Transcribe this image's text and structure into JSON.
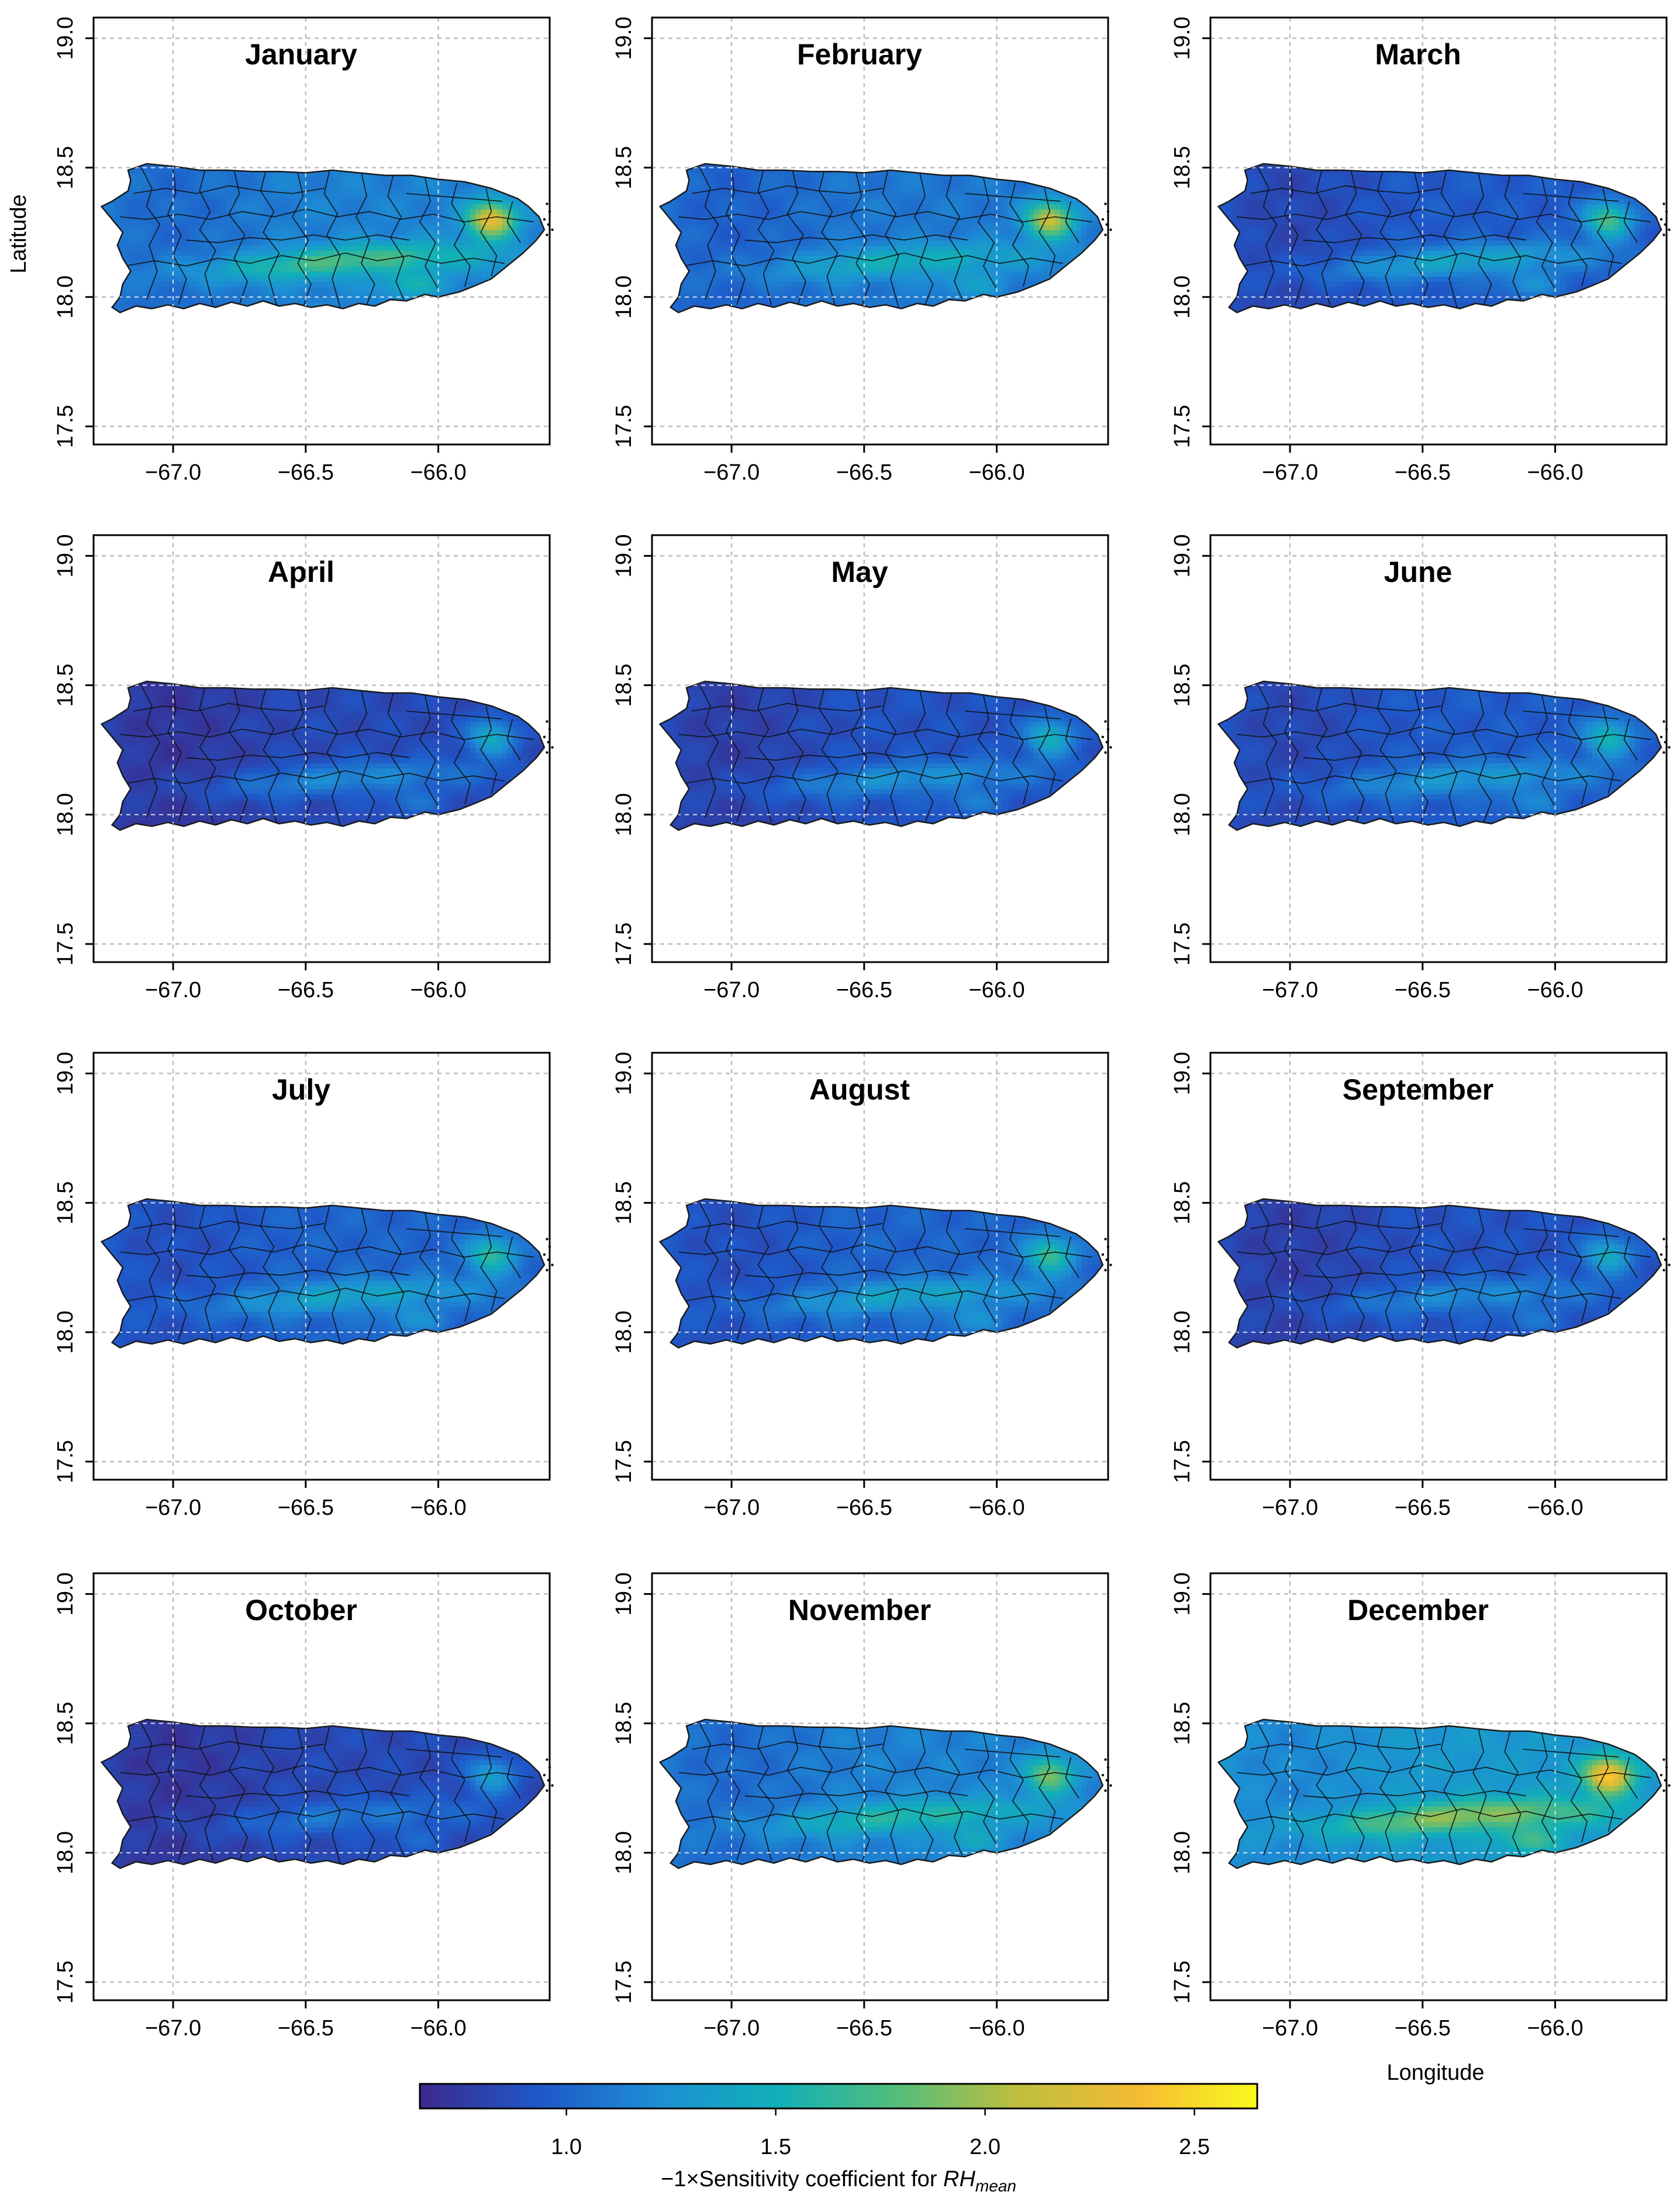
{
  "figure": {
    "panels": [
      {
        "month": "January"
      },
      {
        "month": "February"
      },
      {
        "month": "March"
      },
      {
        "month": "April"
      },
      {
        "month": "May"
      },
      {
        "month": "June"
      },
      {
        "month": "July"
      },
      {
        "month": "August"
      },
      {
        "month": "September"
      },
      {
        "month": "October"
      },
      {
        "month": "November"
      },
      {
        "month": "December"
      }
    ],
    "y_axis_title": "Latitude",
    "x_axis_title": "Longitude",
    "colorbar_title_prefix": "−1×Sensitivity coefficient for ",
    "colorbar_title_var": "RH",
    "colorbar_title_sub": "mean"
  },
  "chart_data": {
    "type": "map",
    "region": "Puerto Rico",
    "x_range": [
      -67.3,
      -65.58
    ],
    "y_range": [
      17.43,
      19.08
    ],
    "x_ticks": [
      -67.0,
      -66.5,
      -66.0
    ],
    "x_tick_labels": [
      "−67.0",
      "−66.5",
      "−66.0"
    ],
    "y_ticks": [
      17.5,
      18.0,
      18.5,
      19.0
    ],
    "y_tick_labels": [
      "17.5",
      "18.0",
      "18.5",
      "19.0"
    ],
    "xlabel": "Longitude",
    "ylabel": "Latitude",
    "grid": true,
    "colorbar": {
      "range": [
        0.65,
        2.65
      ],
      "ticks": [
        1.0,
        1.5,
        2.0,
        2.5
      ],
      "tick_labels": [
        "1.0",
        "1.5",
        "2.0",
        "2.5"
      ],
      "colors": [
        "#3b2a8c",
        "#1f58c9",
        "#1d8fd4",
        "#11b0b8",
        "#55bd7a",
        "#bfbe3e",
        "#f4ba34",
        "#f9f91d"
      ],
      "title": "−1×Sensitivity coefficient for RH_mean"
    },
    "months": [
      {
        "name": "January",
        "base": 1.15,
        "hotspot": {
          "lon": -65.8,
          "lat": 18.3,
          "value": 2.3
        },
        "central_band": 1.75
      },
      {
        "name": "February",
        "base": 1.1,
        "hotspot": {
          "lon": -65.8,
          "lat": 18.3,
          "value": 2.15
        },
        "central_band": 1.5
      },
      {
        "name": "March",
        "base": 0.95,
        "hotspot": {
          "lon": -65.8,
          "lat": 18.3,
          "value": 1.75
        },
        "central_band": 1.4
      },
      {
        "name": "April",
        "base": 0.85,
        "hotspot": {
          "lon": -65.8,
          "lat": 18.3,
          "value": 1.45
        },
        "central_band": 1.2
      },
      {
        "name": "May",
        "base": 0.9,
        "hotspot": {
          "lon": -65.8,
          "lat": 18.3,
          "value": 1.5
        },
        "central_band": 1.25
      },
      {
        "name": "June",
        "base": 0.95,
        "hotspot": {
          "lon": -65.8,
          "lat": 18.3,
          "value": 1.55
        },
        "central_band": 1.3
      },
      {
        "name": "July",
        "base": 1.0,
        "hotspot": {
          "lon": -65.8,
          "lat": 18.3,
          "value": 1.65
        },
        "central_band": 1.4
      },
      {
        "name": "August",
        "base": 1.0,
        "hotspot": {
          "lon": -65.8,
          "lat": 18.3,
          "value": 1.7
        },
        "central_band": 1.4
      },
      {
        "name": "September",
        "base": 0.9,
        "hotspot": {
          "lon": -65.8,
          "lat": 18.3,
          "value": 1.45
        },
        "central_band": 1.2
      },
      {
        "name": "October",
        "base": 0.85,
        "hotspot": {
          "lon": -65.8,
          "lat": 18.3,
          "value": 1.35
        },
        "central_band": 1.1
      },
      {
        "name": "November",
        "base": 1.15,
        "hotspot": {
          "lon": -65.8,
          "lat": 18.3,
          "value": 1.9
        },
        "central_band": 1.6
      },
      {
        "name": "December",
        "base": 1.3,
        "hotspot": {
          "lon": -65.8,
          "lat": 18.3,
          "value": 2.45
        },
        "central_band": 1.95
      }
    ]
  }
}
